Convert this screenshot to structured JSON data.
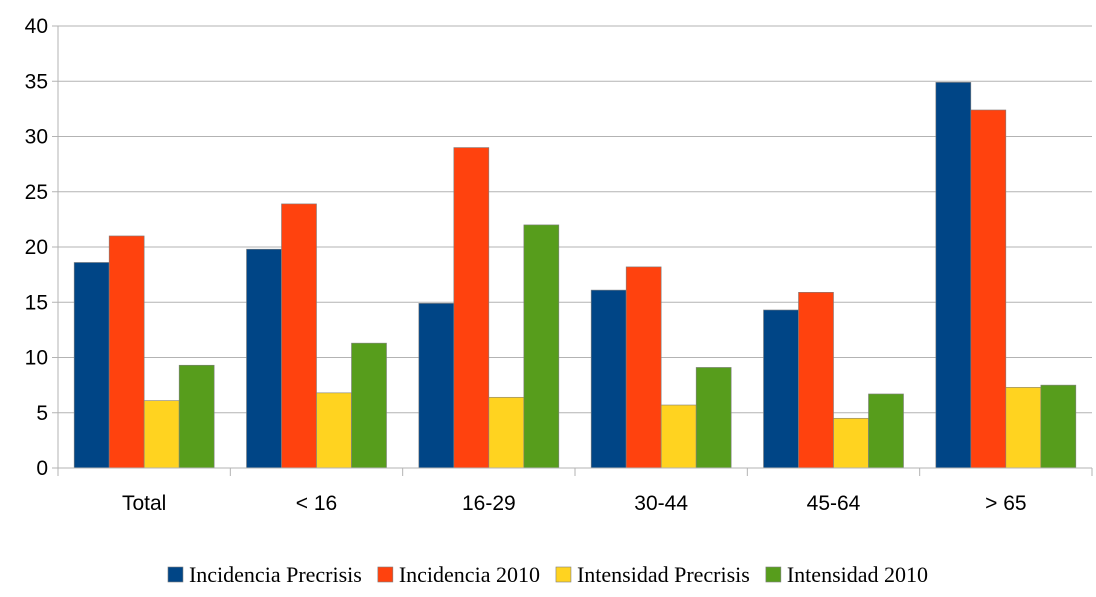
{
  "chart_data": {
    "type": "bar",
    "title": "",
    "xlabel": "",
    "ylabel": "",
    "categories": [
      "Total",
      "< 16",
      "16-29",
      "30-44",
      "45-64",
      "> 65"
    ],
    "ylim": [
      0,
      40
    ],
    "yticks": [
      0,
      5,
      10,
      15,
      20,
      25,
      30,
      35,
      40
    ],
    "grid": true,
    "legend_position": "bottom",
    "series": [
      {
        "name": "Incidencia Precrisis",
        "color": "#004586",
        "values": [
          18.6,
          19.8,
          14.9,
          16.1,
          14.3,
          34.9
        ]
      },
      {
        "name": "Incidencia 2010",
        "color": "#ff420e",
        "values": [
          21.0,
          23.9,
          29.0,
          18.2,
          15.9,
          32.4
        ]
      },
      {
        "name": "Intensidad Precrisis",
        "color": "#ffd320",
        "values": [
          6.1,
          6.8,
          6.4,
          5.7,
          4.5,
          7.3
        ]
      },
      {
        "name": "Intensidad 2010",
        "color": "#579d1c",
        "values": [
          9.3,
          11.3,
          22.0,
          9.1,
          6.7,
          7.5
        ]
      }
    ]
  }
}
